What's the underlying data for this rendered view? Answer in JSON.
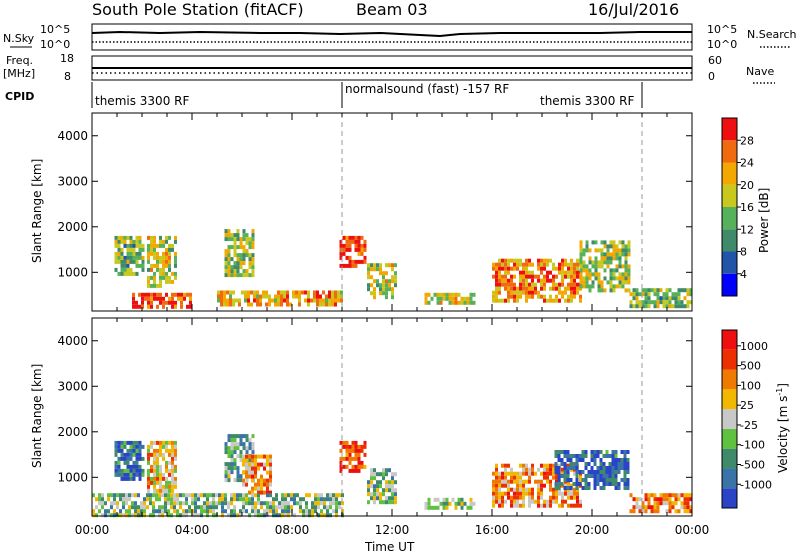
{
  "header": {
    "station": "South Pole Station (fitACF)",
    "beam": "Beam 03",
    "date": "16/Jul/2016"
  },
  "top_panels": {
    "nsky_label": "N.Sky",
    "nsky_ticks": [
      "10^5",
      "10^0"
    ],
    "nsearch_label": "N.Search",
    "nsearch_ticks": [
      "10^5",
      "10^0"
    ],
    "freq_label": "Freq.",
    "freq_unit": "[MHz]",
    "freq_ticks": [
      "18",
      "8"
    ],
    "nave_label": "Nave",
    "nave_ticks": [
      "60",
      "0"
    ],
    "cpid_label": "CPID",
    "cpid_segments": [
      {
        "label": "themis 3300 RF",
        "start_h": 0,
        "end_h": 10
      },
      {
        "label": "normalsound (fast) -157 RF",
        "start_h": 10,
        "end_h": 22
      },
      {
        "label": "themis 3300 RF",
        "start_h": 18,
        "end_h": 22
      }
    ]
  },
  "chart_data": [
    {
      "type": "heatmap",
      "title": "Power",
      "ylabel": "Slant Range [km]",
      "xlabel": "",
      "xlim": [
        0,
        24
      ],
      "ylim": [
        150,
        4500
      ],
      "yticks": [
        "1000",
        "2000",
        "3000",
        "4000"
      ],
      "colorbar": {
        "label": "Power [dB]",
        "ticks": [
          "4",
          "8",
          "12",
          "16",
          "20",
          "24",
          "28"
        ],
        "colors": [
          "#0000ff",
          "#2255aa",
          "#3e8a6a",
          "#57b15a",
          "#c9c81e",
          "#f2a800",
          "#f06a10",
          "#ee1010"
        ]
      },
      "echo_regions": [
        {
          "t0": 0.9,
          "t1": 2.0,
          "r0": 1000,
          "r1": 1800,
          "level": 0.45
        },
        {
          "t0": 2.2,
          "t1": 3.3,
          "r0": 700,
          "r1": 1800,
          "level": 0.55
        },
        {
          "t0": 5.3,
          "t1": 6.5,
          "r0": 950,
          "r1": 1950,
          "level": 0.5
        },
        {
          "t0": 9.9,
          "t1": 10.9,
          "r0": 1100,
          "r1": 1800,
          "level": 0.9
        },
        {
          "t0": 11.0,
          "t1": 12.1,
          "r0": 450,
          "r1": 1200,
          "level": 0.55
        },
        {
          "t0": 16.0,
          "t1": 19.5,
          "r0": 400,
          "r1": 1300,
          "level": 0.75
        },
        {
          "t0": 19.5,
          "t1": 21.5,
          "r0": 600,
          "r1": 1700,
          "level": 0.5
        },
        {
          "t0": 1.6,
          "t1": 4.0,
          "r0": 200,
          "r1": 550,
          "level": 0.9
        },
        {
          "t0": 5.0,
          "t1": 10.0,
          "r0": 250,
          "r1": 600,
          "level": 0.7
        },
        {
          "t0": 13.3,
          "t1": 15.3,
          "r0": 300,
          "r1": 550,
          "level": 0.6
        },
        {
          "t0": 21.5,
          "t1": 24.0,
          "r0": 250,
          "r1": 650,
          "level": 0.45
        }
      ]
    },
    {
      "type": "heatmap",
      "title": "Velocity",
      "ylabel": "Slant Range [km]",
      "xlabel": "Time UT",
      "xlim": [
        0,
        24
      ],
      "ylim": [
        150,
        4500
      ],
      "xticks": [
        "00:00",
        "04:00",
        "08:00",
        "12:00",
        "16:00",
        "20:00",
        "00:00"
      ],
      "yticks": [
        "1000",
        "2000",
        "3000",
        "4000"
      ],
      "colorbar": {
        "label": "Velocity [m s-1]",
        "ticks": [
          "1000",
          "500",
          "100",
          "25",
          "-25",
          "-100",
          "-500",
          "-1000"
        ],
        "colors": [
          "#2a44c8",
          "#3a73a8",
          "#3e8a6a",
          "#60c040",
          "#c8c8c8",
          "#f2b800",
          "#f07a00",
          "#ee3000",
          "#ee1010"
        ]
      },
      "echo_regions": [
        {
          "t0": 0.9,
          "t1": 2.0,
          "r0": 1000,
          "r1": 1800,
          "level": 0.15
        },
        {
          "t0": 2.2,
          "t1": 3.3,
          "r0": 700,
          "r1": 1800,
          "level": 0.6
        },
        {
          "t0": 5.3,
          "t1": 6.5,
          "r0": 950,
          "r1": 1950,
          "level": 0.35
        },
        {
          "t0": 6.0,
          "t1": 7.2,
          "r0": 650,
          "r1": 1500,
          "level": 0.7
        },
        {
          "t0": 9.9,
          "t1": 10.9,
          "r0": 1100,
          "r1": 1800,
          "level": 0.85
        },
        {
          "t0": 11.0,
          "t1": 12.1,
          "r0": 450,
          "r1": 1200,
          "level": 0.4
        },
        {
          "t0": 16.0,
          "t1": 19.5,
          "r0": 400,
          "r1": 1300,
          "level": 0.7
        },
        {
          "t0": 18.5,
          "t1": 21.5,
          "r0": 800,
          "r1": 1600,
          "level": 0.12
        },
        {
          "t0": 0.0,
          "t1": 10.0,
          "r0": 200,
          "r1": 650,
          "level": 0.4
        },
        {
          "t0": 13.3,
          "t1": 15.3,
          "r0": 300,
          "r1": 550,
          "level": 0.45
        },
        {
          "t0": 21.5,
          "t1": 24.0,
          "r0": 250,
          "r1": 650,
          "level": 0.72
        }
      ]
    }
  ]
}
